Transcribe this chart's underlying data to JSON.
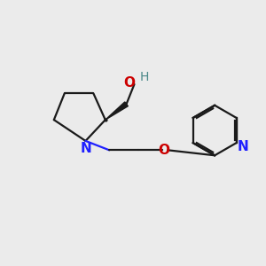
{
  "background_color": "#ebebeb",
  "bond_color": "#1a1a1a",
  "nitrogen_color": "#2020ff",
  "oxygen_color": "#cc0000",
  "hydrogen_color": "#4a8888",
  "fig_size": [
    3.0,
    3.0
  ],
  "dpi": 100,
  "xlim": [
    0,
    10
  ],
  "ylim": [
    0,
    10
  ]
}
